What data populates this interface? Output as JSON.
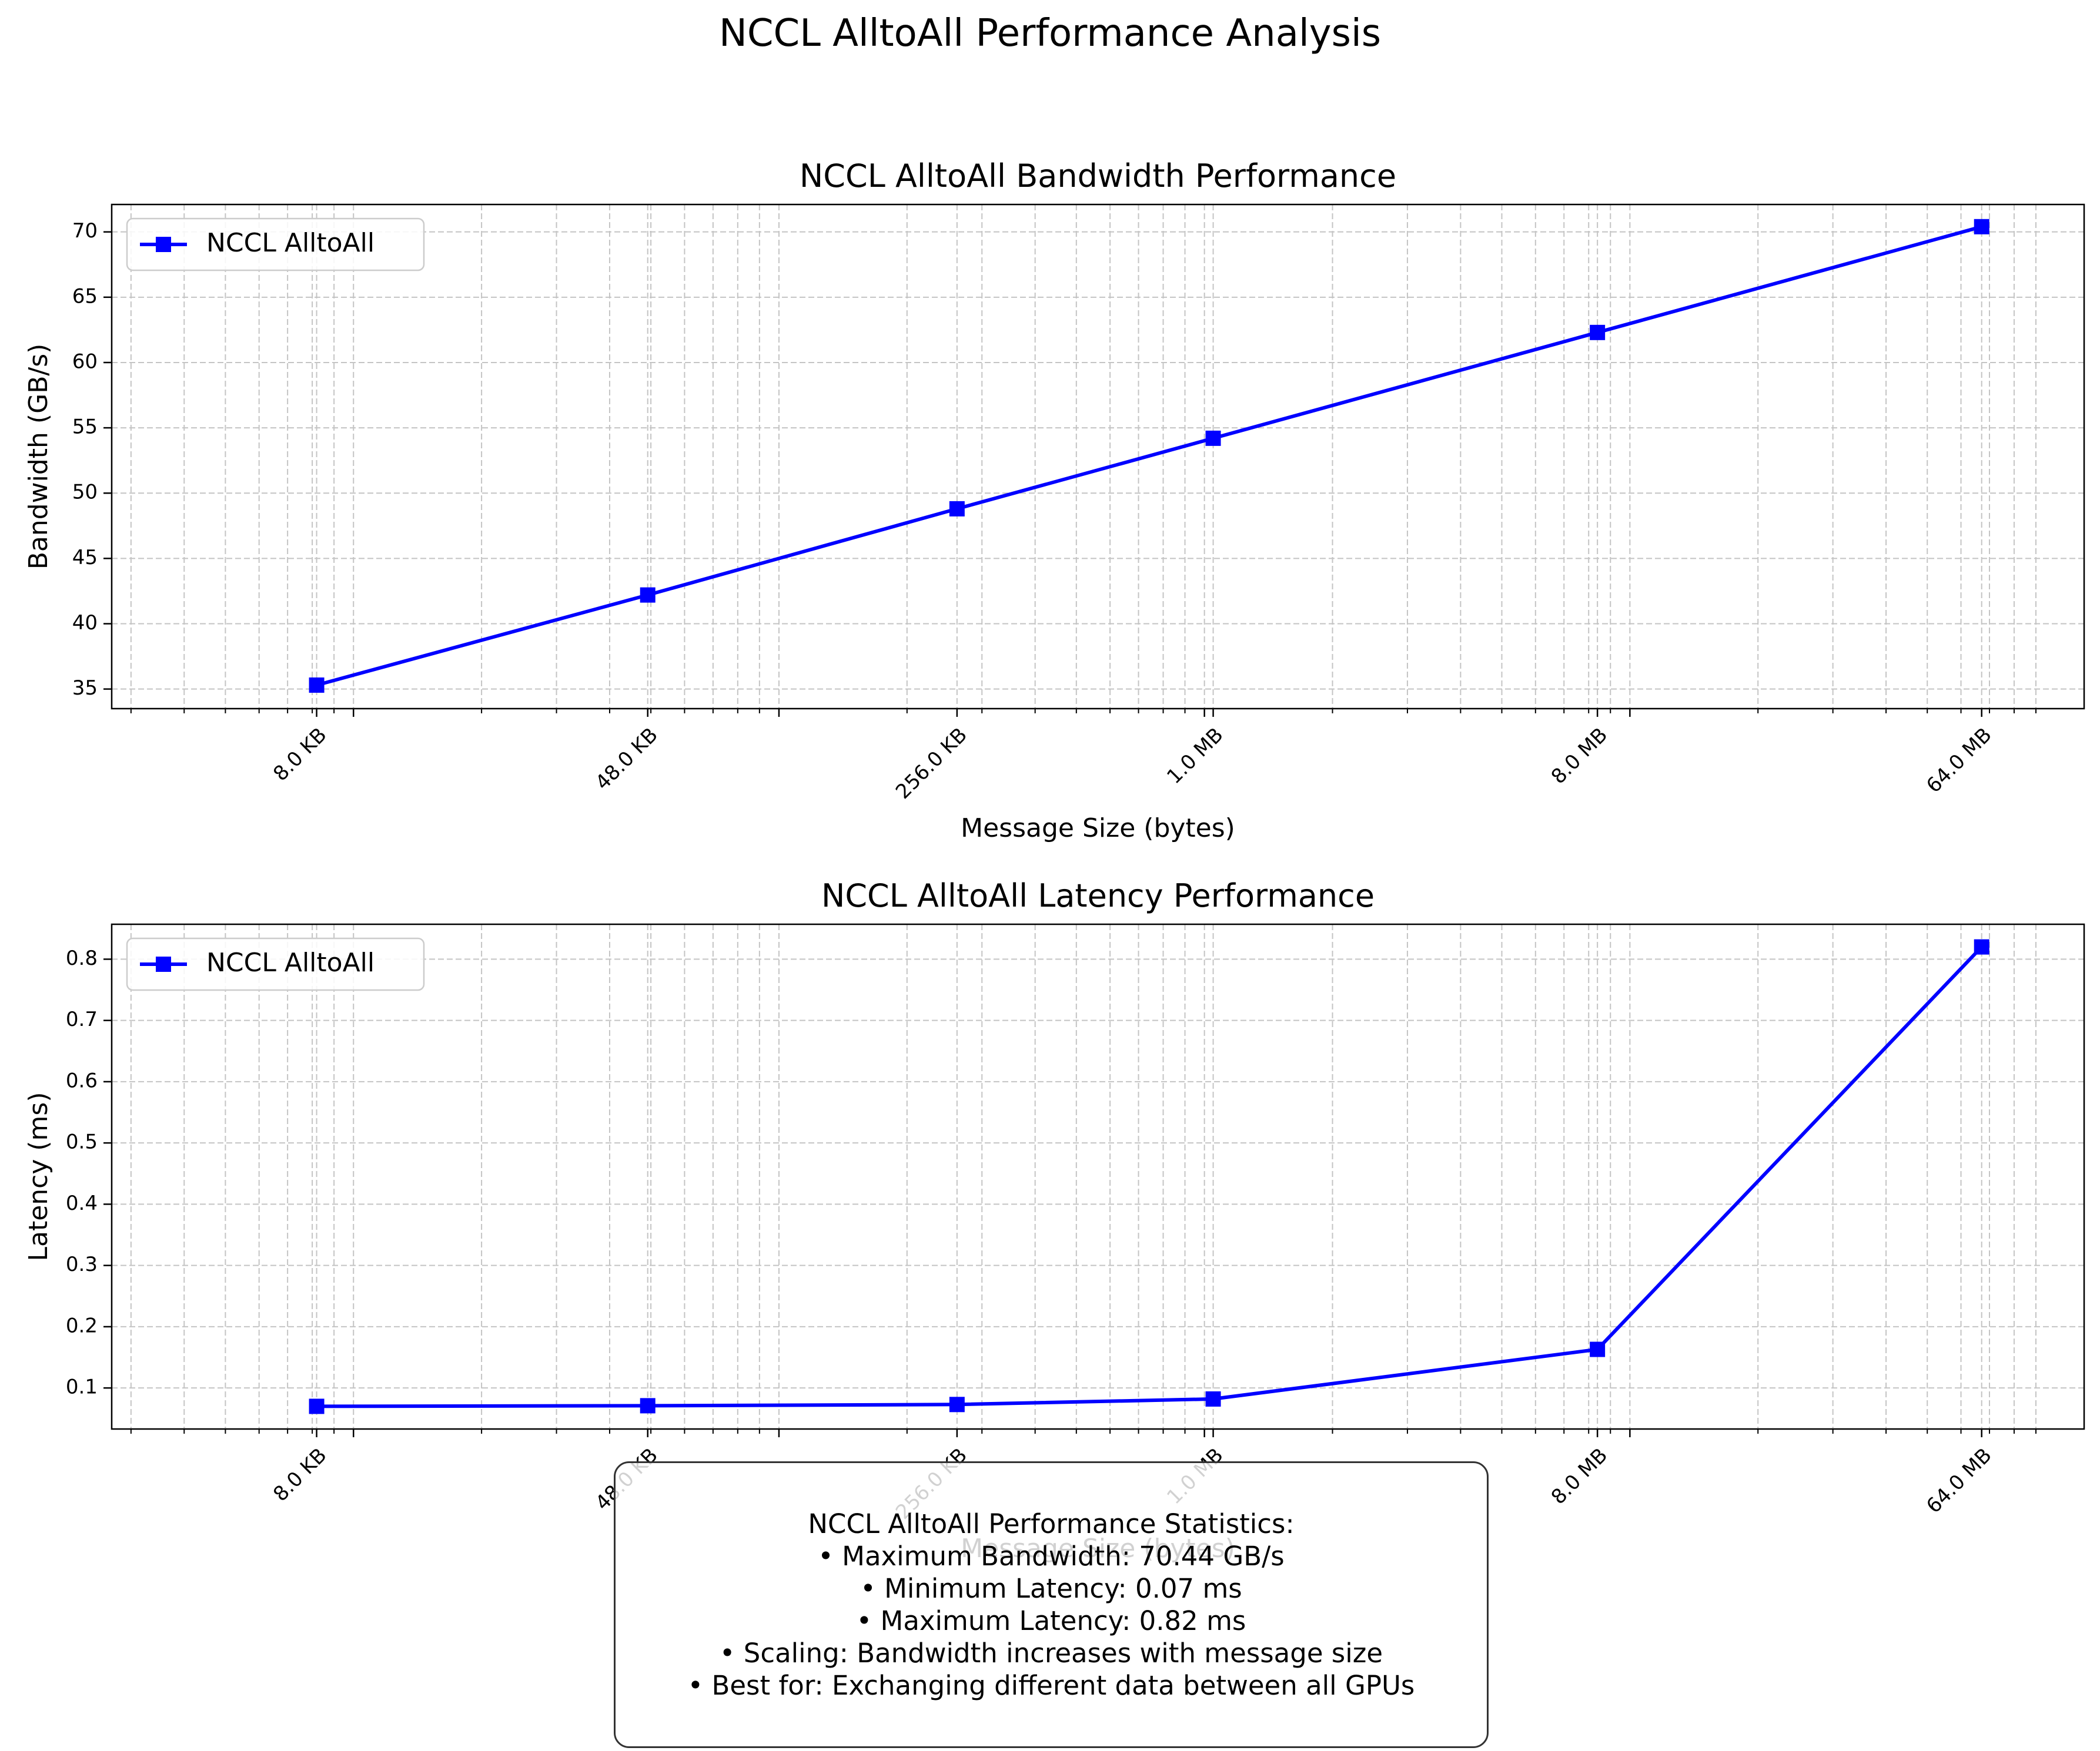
{
  "suptitle": "NCCL AlltoAll Performance Analysis",
  "chart_data": [
    {
      "type": "line",
      "title": "NCCL AlltoAll Bandwidth Performance",
      "xlabel": "Message Size (bytes)",
      "ylabel": "Bandwidth (GB/s)",
      "xscale": "log2",
      "x_ticks": [
        8192,
        49152,
        262144,
        1048576,
        8388608,
        67108864
      ],
      "x_tick_labels": [
        "8.0 KB",
        "48.0 KB",
        "256.0 KB",
        "1.0 MB",
        "8.0 MB",
        "64.0 MB"
      ],
      "y_ticks": [
        35,
        40,
        45,
        50,
        55,
        60,
        65,
        70
      ],
      "y_tick_labels": [
        "35",
        "40",
        "45",
        "50",
        "55",
        "60",
        "65",
        "70"
      ],
      "ylim": [
        33.5,
        72.1
      ],
      "grid": true,
      "legend": "upper-left",
      "series": [
        {
          "name": "NCCL AlltoAll",
          "color": "#0000ff",
          "marker": "square",
          "x": [
            8192,
            49152,
            262144,
            1048576,
            8388608,
            67108864
          ],
          "y": [
            35.3,
            42.2,
            48.8,
            54.2,
            62.3,
            70.4
          ]
        }
      ]
    },
    {
      "type": "line",
      "title": "NCCL AlltoAll Latency Performance",
      "xlabel": "Message Size (bytes)",
      "ylabel": "Latency (ms)",
      "xscale": "log2",
      "x_ticks": [
        8192,
        49152,
        262144,
        1048576,
        8388608,
        67108864
      ],
      "x_tick_labels": [
        "8.0 KB",
        "48.0 KB",
        "256.0 KB",
        "1.0 MB",
        "8.0 MB",
        "64.0 MB"
      ],
      "y_ticks": [
        0.1,
        0.2,
        0.3,
        0.4,
        0.5,
        0.6,
        0.7,
        0.8
      ],
      "y_tick_labels": [
        "0.1",
        "0.2",
        "0.3",
        "0.4",
        "0.5",
        "0.6",
        "0.7",
        "0.8"
      ],
      "ylim": [
        0.033,
        0.857
      ],
      "grid": true,
      "legend": "upper-left",
      "series": [
        {
          "name": "NCCL AlltoAll",
          "color": "#0000ff",
          "marker": "square",
          "x": [
            8192,
            49152,
            262144,
            1048576,
            8388608,
            67108864
          ],
          "y": [
            0.07,
            0.071,
            0.073,
            0.082,
            0.163,
            0.82
          ]
        }
      ]
    }
  ],
  "stats": {
    "title": "NCCL AlltoAll Performance Statistics:",
    "lines": [
      "• Maximum Bandwidth: 70.44 GB/s",
      "• Minimum Latency: 0.07 ms",
      "• Maximum Latency: 0.82 ms",
      "• Scaling: Bandwidth increases with message size",
      "• Best for: Exchanging different data between all GPUs"
    ]
  }
}
